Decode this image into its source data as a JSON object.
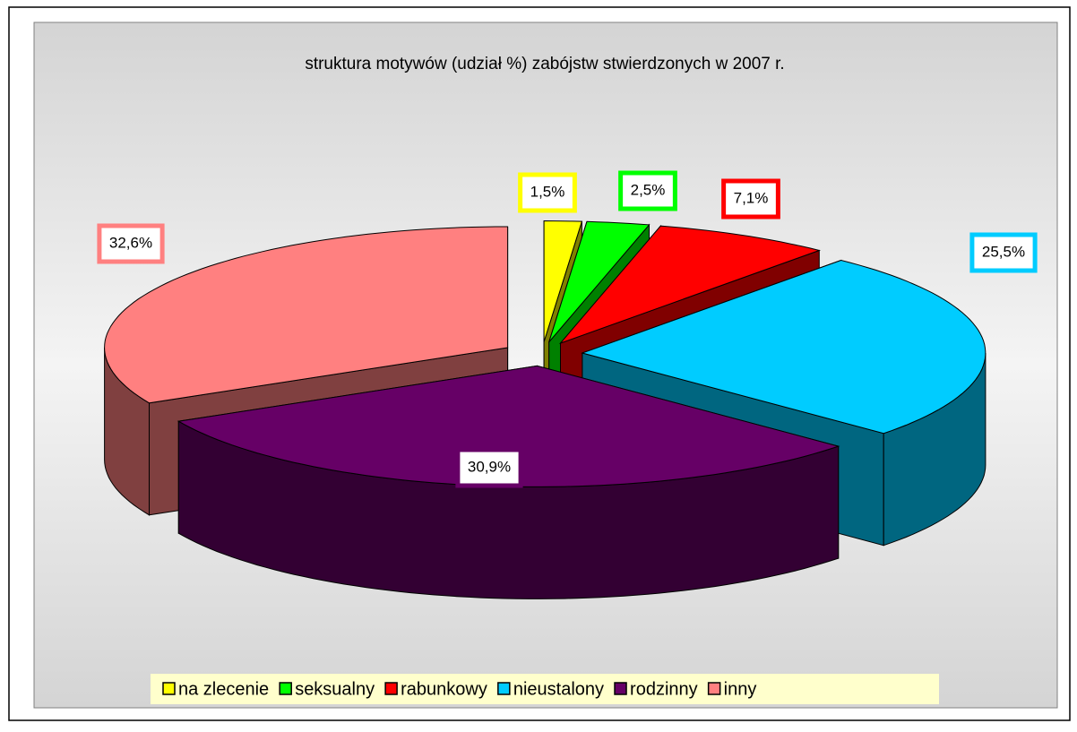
{
  "chart_data": {
    "type": "pie3d",
    "title": "struktura motywów (udział %) zabójstw stwierdzonych w 2007 r.",
    "categories": [
      "na zlecenie",
      "seksualny",
      "rabunkowy",
      "nieustalony",
      "rodzinny",
      "inny"
    ],
    "values": [
      1.5,
      2.5,
      7.1,
      25.5,
      30.9,
      32.6
    ],
    "value_labels": [
      "1,5%",
      "2,5%",
      "7,1%",
      "25,5%",
      "30,9%",
      "32,6%"
    ],
    "colors": [
      "#ffff00",
      "#00ff00",
      "#ff0000",
      "#00ccff",
      "#660066",
      "#ff8080"
    ],
    "legend": "bottom"
  }
}
